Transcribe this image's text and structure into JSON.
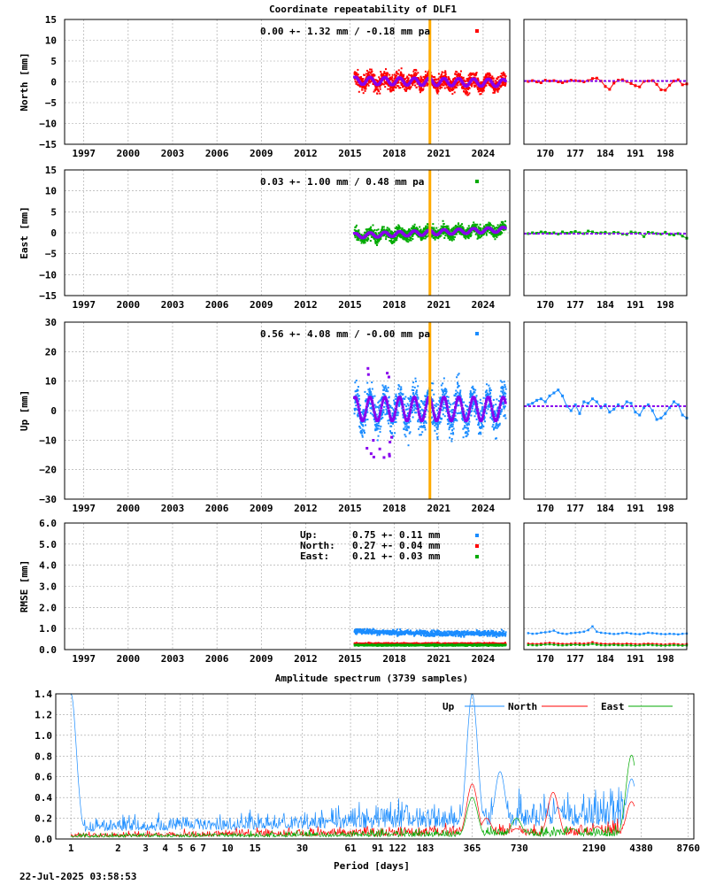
{
  "chart_data": [
    {
      "type": "scatter",
      "title": "Coordinate repeatability of DLF1",
      "ylabel": "North [mm]",
      "ylim": [
        -15,
        15
      ],
      "yticks": [
        -15,
        -10,
        -5,
        0,
        5,
        10,
        15
      ],
      "xticks": [
        "1997",
        "2000",
        "2003",
        "2006",
        "2009",
        "2012",
        "2015",
        "2018",
        "2021",
        "2024"
      ],
      "x_range": [
        1995.7,
        2025.8
      ],
      "stats": "0.00 +- 1.32 mm / -0.18 mm pa",
      "series": [
        {
          "values_summary": {
            "start": 2015.3,
            "end": 2025.55,
            "mean": 0.0,
            "std": 1.32
          }
        }
      ],
      "model": {
        "amplitude": 0.9,
        "trend_per_year": -0.18
      },
      "marker": 2020.4,
      "inset": {
        "xticks": [
          "170",
          "177",
          "184",
          "191",
          "198"
        ],
        "x_range": [
          165,
          203
        ],
        "values": [
          0.1,
          0.3,
          0.0,
          -0.2,
          0.4,
          0.2,
          0.3,
          0.0,
          -0.2,
          0.1,
          0.4,
          0.3,
          0.2,
          0.0,
          0.3,
          0.8,
          0.9,
          0.2,
          -1.1,
          -1.8,
          -0.3,
          0.4,
          0.5,
          0.1,
          -0.4,
          -0.9,
          -1.2,
          0.1,
          0.2,
          0.3,
          -0.6,
          -1.9,
          -2.0,
          -0.8,
          0.2,
          0.5,
          -0.7,
          -0.5
        ]
      }
    },
    {
      "type": "scatter",
      "ylabel": "East [mm]",
      "ylim": [
        -15,
        15
      ],
      "yticks": [
        -15,
        -10,
        -5,
        0,
        5,
        10,
        15
      ],
      "xticks": [
        "1997",
        "2000",
        "2003",
        "2006",
        "2009",
        "2012",
        "2015",
        "2018",
        "2021",
        "2024"
      ],
      "x_range": [
        1995.7,
        2025.8
      ],
      "stats": "0.03 +- 1.00 mm /  0.48 mm pa",
      "series": [
        {
          "values_summary": {
            "start": 2015.3,
            "end": 2025.55,
            "mean": 0.03,
            "std": 1.0
          }
        }
      ],
      "model": {
        "amplitude": 0.6,
        "trend_per_year": 0.48
      },
      "marker": 2020.4,
      "inset": {
        "xticks": [
          "170",
          "177",
          "184",
          "191",
          "198"
        ],
        "x_range": [
          165,
          203
        ],
        "values": [
          -0.2,
          0.0,
          -0.1,
          0.2,
          0.1,
          -0.1,
          0.0,
          -0.3,
          0.2,
          -0.1,
          0.1,
          0.3,
          0.0,
          -0.2,
          0.4,
          0.2,
          -0.1,
          0.0,
          0.1,
          -0.2,
          0.1,
          0.0,
          -0.3,
          -0.4,
          0.2,
          0.0,
          -0.1,
          -0.9,
          0.1,
          0.0,
          -0.2,
          -0.3,
          0.1,
          -0.4,
          -0.5,
          -0.2,
          -0.8,
          -1.3
        ]
      }
    },
    {
      "type": "scatter",
      "ylabel": "Up [mm]",
      "ylim": [
        -30,
        30
      ],
      "yticks": [
        -30,
        -20,
        -10,
        0,
        10,
        20,
        30
      ],
      "xticks": [
        "1997",
        "2000",
        "2003",
        "2006",
        "2009",
        "2012",
        "2015",
        "2018",
        "2021",
        "2024"
      ],
      "x_range": [
        1995.7,
        2025.8
      ],
      "stats": "0.56 +- 4.08 mm / -0.00 mm pa",
      "series": [
        {
          "values_summary": {
            "start": 2015.3,
            "end": 2025.55,
            "mean": 0.56,
            "std": 4.08
          }
        }
      ],
      "model": {
        "amplitude": 4.0,
        "trend_per_year": -0.0
      },
      "marker": 2020.4,
      "inset": {
        "xticks": [
          "170",
          "177",
          "184",
          "191",
          "198"
        ],
        "x_range": [
          165,
          203
        ],
        "values": [
          2.0,
          2.5,
          3.5,
          4.0,
          3.0,
          5.0,
          6.0,
          7.0,
          5.0,
          1.5,
          0.0,
          2.0,
          -1.0,
          3.0,
          2.5,
          4.0,
          3.0,
          1.0,
          2.0,
          -0.5,
          0.5,
          2.0,
          1.0,
          3.0,
          2.5,
          -0.5,
          -1.5,
          1.0,
          2.0,
          0.0,
          -3.0,
          -2.5,
          -1.0,
          1.0,
          3.0,
          2.0,
          -1.5,
          -2.5
        ]
      }
    },
    {
      "type": "scatter",
      "ylabel": "RMSE [mm]",
      "ylim": [
        0,
        6
      ],
      "yticks": [
        "0.0",
        "1.0",
        "2.0",
        "3.0",
        "4.0",
        "5.0",
        "6.0"
      ],
      "xticks": [
        "1997",
        "2000",
        "2003",
        "2006",
        "2009",
        "2012",
        "2015",
        "2018",
        "2021",
        "2024"
      ],
      "x_range": [
        1995.7,
        2025.8
      ],
      "legend": [
        {
          "label": "Up:    ",
          "value": "0.75 +- 0.11 mm",
          "color": "#1a8cff"
        },
        {
          "label": "North: ",
          "value": "0.27 +- 0.04 mm",
          "color": "#ff0000"
        },
        {
          "label": "East:  ",
          "value": "0.21 +- 0.03 mm",
          "color": "#00aa00"
        }
      ],
      "series": [
        {
          "name": "Up",
          "values_summary": {
            "start": 2015.3,
            "end": 2025.55,
            "mean": 0.75,
            "std": 0.11
          }
        },
        {
          "name": "North",
          "values_summary": {
            "start": 2015.3,
            "end": 2025.55,
            "mean": 0.27,
            "std": 0.04
          }
        },
        {
          "name": "East",
          "values_summary": {
            "start": 2015.3,
            "end": 2025.55,
            "mean": 0.21,
            "std": 0.03
          }
        }
      ],
      "inset": {
        "xticks": [
          "170",
          "177",
          "184",
          "191",
          "198"
        ],
        "x_range": [
          165,
          203
        ],
        "up": [
          0.78,
          0.75,
          0.76,
          0.8,
          0.82,
          0.85,
          0.9,
          0.8,
          0.76,
          0.74,
          0.78,
          0.8,
          0.82,
          0.85,
          0.92,
          1.1,
          0.85,
          0.8,
          0.78,
          0.76,
          0.74,
          0.75,
          0.78,
          0.8,
          0.76,
          0.74,
          0.73,
          0.76,
          0.8,
          0.78,
          0.76,
          0.74,
          0.73,
          0.75,
          0.74,
          0.72,
          0.75,
          0.76
        ],
        "north": [
          0.28,
          0.27,
          0.26,
          0.28,
          0.3,
          0.32,
          0.3,
          0.28,
          0.27,
          0.26,
          0.28,
          0.3,
          0.29,
          0.28,
          0.3,
          0.35,
          0.3,
          0.28,
          0.27,
          0.26,
          0.28,
          0.27,
          0.26,
          0.28,
          0.27,
          0.26,
          0.25,
          0.27,
          0.28,
          0.27,
          0.26,
          0.25,
          0.24,
          0.26,
          0.27,
          0.25,
          0.24,
          0.26
        ],
        "east": [
          0.22,
          0.21,
          0.2,
          0.22,
          0.24,
          0.25,
          0.23,
          0.21,
          0.2,
          0.21,
          0.22,
          0.23,
          0.22,
          0.21,
          0.23,
          0.27,
          0.23,
          0.21,
          0.2,
          0.21,
          0.22,
          0.21,
          0.2,
          0.21,
          0.2,
          0.19,
          0.2,
          0.21,
          0.22,
          0.21,
          0.2,
          0.19,
          0.19,
          0.2,
          0.21,
          0.2,
          0.19,
          0.2
        ]
      }
    },
    {
      "type": "line",
      "title": "Amplitude spectrum (3739 samples)",
      "xlabel": "Period [days]",
      "xscale": "log",
      "ylim": [
        0,
        1.4
      ],
      "yticks": [
        "0.0",
        "0.2",
        "0.4",
        "0.6",
        "0.8",
        "1.0",
        "1.2",
        "1.4"
      ],
      "xticks": [
        1,
        2,
        3,
        4,
        5,
        6,
        7,
        10,
        15,
        30,
        61,
        91,
        122,
        183,
        365,
        730,
        2190,
        4380,
        8760
      ],
      "series": [
        {
          "name": "Up",
          "color": "#1a8cff",
          "peaks": [
            [
              1,
              1.4
            ],
            [
              365,
              1.4
            ],
            [
              420,
              0.25
            ],
            [
              550,
              0.65
            ],
            [
              730,
              0.1
            ],
            [
              1300,
              0.3
            ],
            [
              3800,
              0.58
            ]
          ]
        },
        {
          "name": "North",
          "color": "#ff0000",
          "peaks": [
            [
              365,
              0.53
            ],
            [
              450,
              0.2
            ],
            [
              700,
              0.1
            ],
            [
              1200,
              0.45
            ],
            [
              2300,
              0.12
            ],
            [
              3800,
              0.36
            ]
          ]
        },
        {
          "name": "East",
          "color": "#00aa00",
          "peaks": [
            [
              365,
              0.4
            ],
            [
              700,
              0.2
            ],
            [
              1600,
              0.1
            ],
            [
              3800,
              0.81
            ]
          ]
        }
      ]
    }
  ],
  "colors": {
    "north": "#ff0000",
    "east": "#00aa00",
    "up": "#1a8cff",
    "model": "#8800ee",
    "marker": "#ffaa00",
    "grid": "#a0a0a0"
  },
  "footer": "22-Jul-2025 03:58:53"
}
